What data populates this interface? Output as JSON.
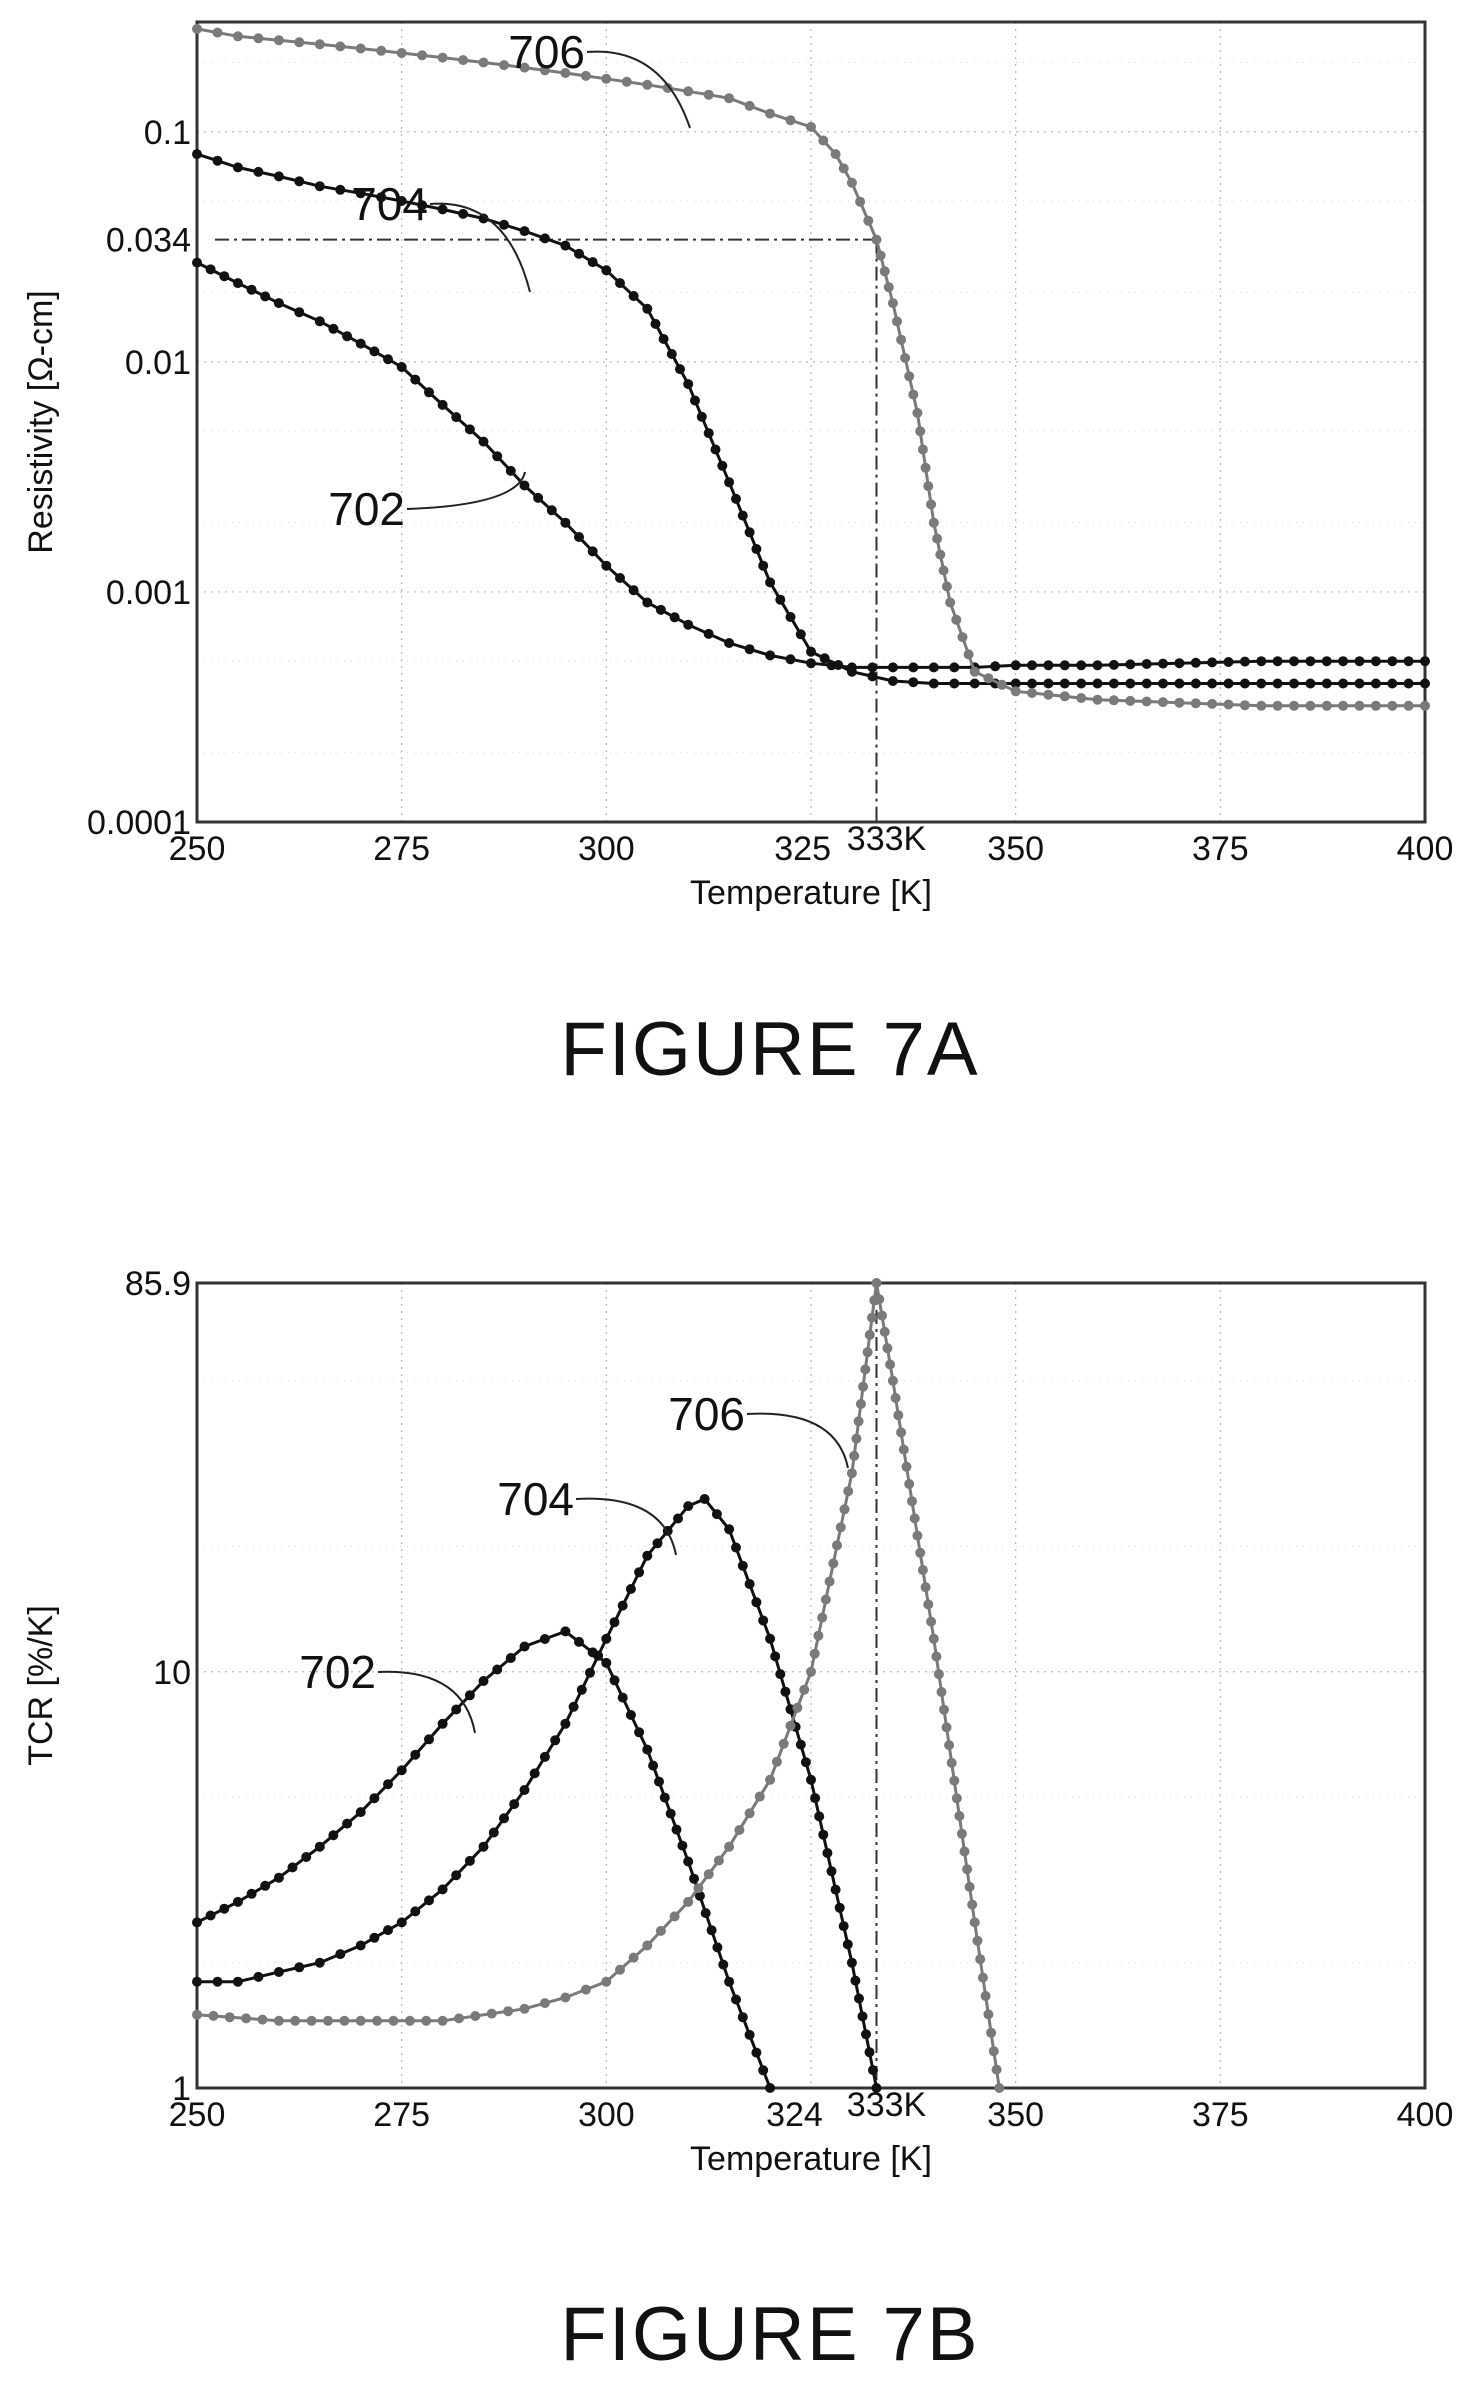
{
  "chart_data": [
    {
      "type": "line",
      "caption": "FIGURE 7A",
      "xlabel": "Temperature [K]",
      "ylabel": "Resistivity [Ω-cm]",
      "y_scale": "log",
      "xlim": [
        250,
        400
      ],
      "ylim": [
        0.0001,
        0.3
      ],
      "x_ticks": [
        "250",
        "275",
        "300",
        "325",
        "350",
        "375",
        "400"
      ],
      "y_ticks": [
        "0.0001",
        "0.001",
        "0.01",
        "0.034",
        "0.1"
      ],
      "annotations": [
        {
          "text": "333K",
          "x": 333
        },
        {
          "text": "0.034",
          "y": 0.034
        }
      ],
      "series": [
        {
          "name": "702",
          "color": "#111111",
          "x": [
            250,
            255,
            260,
            265,
            270,
            275,
            280,
            285,
            290,
            295,
            300,
            305,
            310,
            315,
            320,
            325,
            330,
            335,
            340,
            345,
            350,
            360,
            370,
            380,
            390,
            400
          ],
          "y": [
            0.027,
            0.022,
            0.018,
            0.015,
            0.012,
            0.0095,
            0.0065,
            0.0045,
            0.0029,
            0.002,
            0.0013,
            0.0009,
            0.00072,
            0.0006,
            0.00053,
            0.00049,
            0.00047,
            0.00047,
            0.00047,
            0.00047,
            0.00048,
            0.00048,
            0.00049,
            0.0005,
            0.0005,
            0.0005
          ]
        },
        {
          "name": "704",
          "color": "#111111",
          "x": [
            250,
            255,
            260,
            265,
            270,
            275,
            280,
            285,
            290,
            295,
            300,
            305,
            310,
            315,
            320,
            325,
            330,
            335,
            340,
            345,
            350,
            360,
            370,
            380,
            390,
            400
          ],
          "y": [
            0.08,
            0.07,
            0.064,
            0.058,
            0.054,
            0.05,
            0.046,
            0.042,
            0.037,
            0.032,
            0.025,
            0.017,
            0.008,
            0.003,
            0.0011,
            0.00055,
            0.00045,
            0.00041,
            0.0004,
            0.0004,
            0.0004,
            0.0004,
            0.0004,
            0.0004,
            0.0004,
            0.0004
          ]
        },
        {
          "name": "706",
          "color": "#7a7a7a",
          "x": [
            250,
            255,
            260,
            265,
            270,
            275,
            280,
            285,
            290,
            295,
            300,
            305,
            310,
            315,
            320,
            325,
            328,
            330,
            333,
            335,
            338,
            340,
            342,
            345,
            350,
            360,
            370,
            380,
            390,
            400
          ],
          "y": [
            0.28,
            0.26,
            0.25,
            0.24,
            0.23,
            0.22,
            0.21,
            0.2,
            0.19,
            0.18,
            0.17,
            0.16,
            0.15,
            0.14,
            0.12,
            0.105,
            0.08,
            0.06,
            0.034,
            0.018,
            0.006,
            0.002,
            0.0009,
            0.00045,
            0.00037,
            0.00034,
            0.00033,
            0.00032,
            0.00032,
            0.00032
          ]
        }
      ]
    },
    {
      "type": "line",
      "caption": "FIGURE 7B",
      "xlabel": "Temperature [K]",
      "ylabel": "TCR [%/K]",
      "y_scale": "log",
      "xlim": [
        250,
        400
      ],
      "ylim": [
        1,
        85.9
      ],
      "x_ticks": [
        "250",
        "275",
        "300",
        "324",
        "350",
        "375",
        "400"
      ],
      "y_ticks": [
        "1",
        "10",
        "85.9"
      ],
      "annotations": [
        {
          "text": "333K",
          "x": 333
        },
        {
          "text": "85.9",
          "y": 85.9
        }
      ],
      "series": [
        {
          "name": "702",
          "color": "#111111",
          "x": [
            250,
            255,
            260,
            265,
            270,
            275,
            280,
            285,
            290,
            295,
            300,
            305,
            310,
            315,
            320
          ],
          "y": [
            2.5,
            2.8,
            3.2,
            3.8,
            4.6,
            5.8,
            7.5,
            9.5,
            11.5,
            12.5,
            10.5,
            6.5,
            3.5,
            1.8,
            1.0
          ]
        },
        {
          "name": "704",
          "color": "#111111",
          "x": [
            250,
            255,
            260,
            265,
            270,
            275,
            280,
            285,
            290,
            295,
            300,
            305,
            310,
            312,
            315,
            320,
            325,
            330,
            333
          ],
          "y": [
            1.8,
            1.8,
            1.9,
            2.0,
            2.2,
            2.5,
            3.0,
            3.8,
            5.2,
            7.5,
            12.0,
            19.0,
            25.0,
            26.0,
            22.0,
            12.0,
            5.5,
            2.0,
            1.0
          ]
        },
        {
          "name": "706",
          "color": "#7a7a7a",
          "x": [
            250,
            260,
            270,
            280,
            290,
            295,
            300,
            305,
            310,
            315,
            320,
            325,
            330,
            333,
            335,
            340,
            345,
            348
          ],
          "y": [
            1.5,
            1.45,
            1.45,
            1.45,
            1.55,
            1.65,
            1.8,
            2.2,
            2.8,
            3.8,
            5.5,
            10.0,
            30.0,
            85.9,
            50.0,
            12.0,
            2.5,
            1.0
          ]
        }
      ]
    }
  ]
}
